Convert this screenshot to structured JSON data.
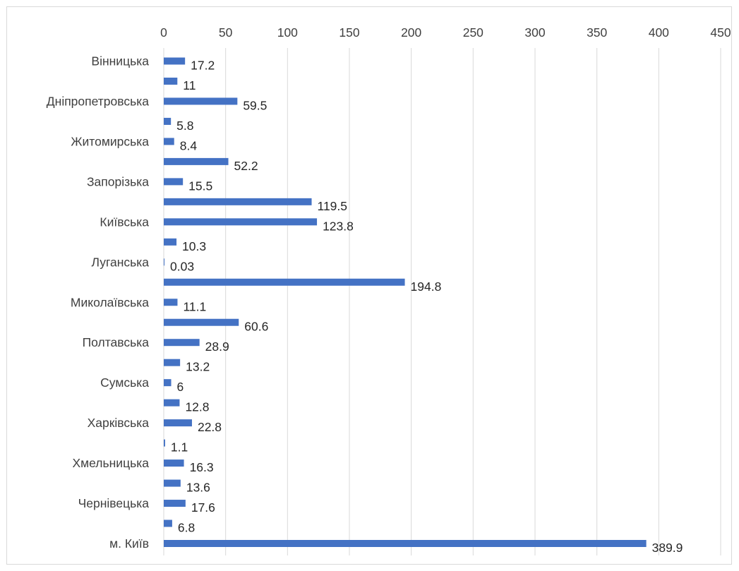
{
  "chart_data": {
    "type": "bar",
    "orientation": "horizontal",
    "categories": [
      "Вінницька",
      "",
      "Дніпропетровська",
      "",
      "Житомирська",
      "",
      "Запорізька",
      "",
      "Київська",
      "",
      "Луганська",
      "",
      "Миколаївська",
      "",
      "Полтавська",
      "",
      "Сумська",
      "",
      "Харківська",
      "",
      "Хмельницька",
      "",
      "Чернівецька",
      "",
      "м. Київ"
    ],
    "values": [
      17.2,
      11,
      59.5,
      5.8,
      8.4,
      52.2,
      15.5,
      119.5,
      123.8,
      10.3,
      0.03,
      194.8,
      11.1,
      60.6,
      28.9,
      13.2,
      6,
      12.8,
      22.8,
      1.1,
      16.3,
      13.6,
      17.6,
      6.8,
      389.9
    ],
    "value_labels": [
      "17.2",
      "11",
      "59.5",
      "5.8",
      "8.4",
      "52.2",
      "15.5",
      "119.5",
      "123.8",
      "10.3",
      "0.03",
      "194.8",
      "11.1",
      "60.6",
      "28.9",
      "13.2",
      "6",
      "12.8",
      "22.8",
      "1.1",
      "16.3",
      "13.6",
      "17.6",
      "6.8",
      "389.9"
    ],
    "xticks": [
      "0",
      "50",
      "100",
      "150",
      "200",
      "250",
      "300",
      "350",
      "400",
      "450"
    ],
    "xlim": [
      0,
      450
    ],
    "x_axis_position": "top",
    "grid": "vertical",
    "bar_color": "#4472c4",
    "gridline_color": "#d9d9d9",
    "text_color": "#404040",
    "title": "",
    "xlabel": "",
    "ylabel": ""
  }
}
